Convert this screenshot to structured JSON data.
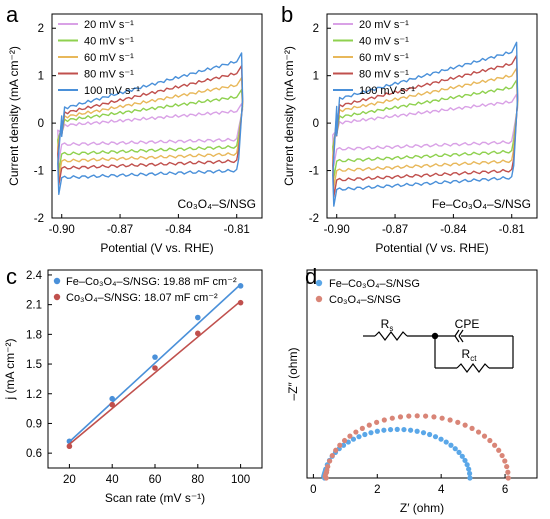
{
  "chart_data": [
    {
      "panel": "a",
      "type": "line",
      "xlabel": "Potential (V vs. RHE)",
      "ylabel": "Current density (mA cm⁻²)",
      "xlim": [
        -0.905,
        -0.797
      ],
      "ylim": [
        -2,
        2.3
      ],
      "xticks": [
        -0.9,
        -0.87,
        -0.84,
        -0.81
      ],
      "xticklabels": [
        "-0.90",
        "-0.87",
        "-0.84",
        "-0.81"
      ],
      "yticks": [
        -2,
        -1,
        0,
        1,
        2
      ],
      "yticklabels": [
        "-2",
        "-1",
        "0",
        "1",
        "2"
      ],
      "annotation": "Co₃O₄–S/NSG",
      "legend_position": "top-left",
      "x": [
        -0.9,
        -0.81
      ],
      "series": [
        {
          "name": "20 mV s⁻¹",
          "color": "#d9a1e6",
          "upper": [
            -0.05,
            0.25
          ],
          "lower": [
            -0.45,
            -0.35
          ]
        },
        {
          "name": "40 mV s⁻¹",
          "color": "#8fd14f",
          "upper": [
            0.05,
            0.55
          ],
          "lower": [
            -0.65,
            -0.5
          ]
        },
        {
          "name": "60 mV s⁻¹",
          "color": "#e8b85a",
          "upper": [
            0.12,
            0.8
          ],
          "lower": [
            -0.8,
            -0.65
          ]
        },
        {
          "name": "80 mV s⁻¹",
          "color": "#c0504d",
          "upper": [
            0.2,
            1.05
          ],
          "lower": [
            -0.95,
            -0.8
          ]
        },
        {
          "name": "100 mV s⁻¹",
          "color": "#4a90d9",
          "upper": [
            0.3,
            1.3
          ],
          "lower": [
            -1.15,
            -1.0
          ]
        }
      ]
    },
    {
      "panel": "b",
      "type": "line",
      "xlabel": "Potential (V vs. RHE)",
      "ylabel": "Current density (mA cm⁻²)",
      "xlim": [
        -0.905,
        -0.797
      ],
      "ylim": [
        -2,
        2.3
      ],
      "xticks": [
        -0.9,
        -0.87,
        -0.84,
        -0.81
      ],
      "xticklabels": [
        "-0.90",
        "-0.87",
        "-0.84",
        "-0.81"
      ],
      "yticks": [
        -2,
        -1,
        0,
        1,
        2
      ],
      "yticklabels": [
        "-2",
        "-1",
        "0",
        "1",
        "2"
      ],
      "annotation": "Fe–Co₃O₄–S/NSG",
      "legend_position": "top-left",
      "x": [
        -0.9,
        -0.81
      ],
      "series": [
        {
          "name": "20 mV s⁻¹",
          "color": "#d9a1e6",
          "upper": [
            0.0,
            0.45
          ],
          "lower": [
            -0.55,
            -0.4
          ]
        },
        {
          "name": "40 mV s⁻¹",
          "color": "#8fd14f",
          "upper": [
            0.12,
            0.75
          ],
          "lower": [
            -0.8,
            -0.6
          ]
        },
        {
          "name": "60 mV s⁻¹",
          "color": "#e8b85a",
          "upper": [
            0.25,
            1.0
          ],
          "lower": [
            -1.0,
            -0.8
          ]
        },
        {
          "name": "80 mV s⁻¹",
          "color": "#c0504d",
          "upper": [
            0.35,
            1.25
          ],
          "lower": [
            -1.2,
            -1.0
          ]
        },
        {
          "name": "100 mV s⁻¹",
          "color": "#4a90d9",
          "upper": [
            0.5,
            1.5
          ],
          "lower": [
            -1.4,
            -1.15
          ]
        }
      ]
    },
    {
      "panel": "c",
      "type": "scatter",
      "xlabel": "Scan rate (mV s⁻¹)",
      "ylabel": "j (mA cm⁻²)",
      "xlim": [
        10,
        110
      ],
      "ylim": [
        0.45,
        2.45
      ],
      "xticks": [
        20,
        40,
        60,
        80,
        100
      ],
      "xticklabels": [
        "20",
        "40",
        "60",
        "80",
        "100"
      ],
      "yticks": [
        0.6,
        0.9,
        1.2,
        1.5,
        1.8,
        2.1,
        2.4
      ],
      "yticklabels": [
        "0.6",
        "0.9",
        "1.2",
        "1.5",
        "1.8",
        "2.1",
        "2.4"
      ],
      "legend_position": "top-left",
      "x": [
        20,
        40,
        60,
        80,
        100
      ],
      "series": [
        {
          "name": "Fe–Co₃O₄–S/NSG: 19.88 mF cm⁻²",
          "color": "#4a90d9",
          "values": [
            0.72,
            1.15,
            1.57,
            1.97,
            2.29
          ],
          "fit": [
            0.715,
            2.305
          ]
        },
        {
          "name": "Co₃O₄–S/NSG: 18.07 mF cm⁻²",
          "color": "#c0504d",
          "values": [
            0.67,
            1.09,
            1.46,
            1.81,
            2.12
          ],
          "fit": [
            0.69,
            2.135
          ]
        }
      ]
    },
    {
      "panel": "d",
      "type": "scatter",
      "xlabel": "Z′ (ohm)",
      "ylabel": "–Z″ (ohm)",
      "xlim": [
        -0.2,
        7.0
      ],
      "ylim": [
        0,
        9.2
      ],
      "xticks": [
        0,
        2,
        4,
        6
      ],
      "xticklabels": [
        "0",
        "2",
        "4",
        "6"
      ],
      "legend_position": "top-left",
      "circuit": {
        "rs_label": "R",
        "rs_sub": "s",
        "cpe_label": "CPE",
        "rct_label": "R",
        "rct_sub": "ct"
      },
      "series": [
        {
          "name": "Fe–Co₃O₄–S/NSG",
          "color": "#5aa7e8",
          "arc": {
            "x_start": 0.35,
            "x_end": 4.9,
            "peak": 2.15
          }
        },
        {
          "name": "Co₃O₄–S/NSG",
          "color": "#d98577",
          "arc": {
            "x_start": 0.4,
            "x_end": 6.1,
            "peak": 2.75
          }
        }
      ]
    }
  ]
}
